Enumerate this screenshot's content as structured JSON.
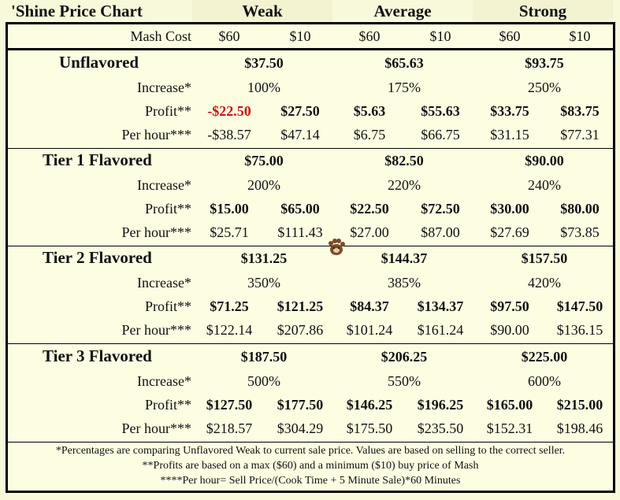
{
  "header": {
    "title": "'Shine Price Chart",
    "columns": [
      "Weak",
      "Average",
      "Strong"
    ]
  },
  "mash_cost": {
    "label": "Mash Cost",
    "values": [
      "$60",
      "$10",
      "$60",
      "$10",
      "$60",
      "$10"
    ]
  },
  "sections": [
    {
      "title": "Unflavored",
      "prices": [
        "$37.50",
        "$65.63",
        "$93.75"
      ],
      "increase_label": "Increase*",
      "increase": [
        "100%",
        "175%",
        "250%"
      ],
      "profit_label": "Profit**",
      "profit": [
        "-$22.50",
        "$27.50",
        "$5.63",
        "$55.63",
        "$33.75",
        "$83.75"
      ],
      "per_hour_label": "Per hour***",
      "per_hour": [
        "-$38.57",
        "$47.14",
        "$6.75",
        "$66.75",
        "$31.15",
        "$77.31"
      ]
    },
    {
      "title": "Tier 1 Flavored",
      "prices": [
        "$75.00",
        "$82.50",
        "$90.00"
      ],
      "increase_label": "Increase*",
      "increase": [
        "200%",
        "220%",
        "240%"
      ],
      "profit_label": "Profit**",
      "profit": [
        "$15.00",
        "$65.00",
        "$22.50",
        "$72.50",
        "$30.00",
        "$80.00"
      ],
      "per_hour_label": "Per hour***",
      "per_hour": [
        "$25.71",
        "$111.43",
        "$27.00",
        "$87.00",
        "$27.69",
        "$73.85"
      ]
    },
    {
      "title": "Tier 2 Flavored",
      "prices": [
        "$131.25",
        "$144.37",
        "$157.50"
      ],
      "increase_label": "Increase*",
      "increase": [
        "350%",
        "385%",
        "420%"
      ],
      "profit_label": "Profit**",
      "profit": [
        "$71.25",
        "$121.25",
        "$84.37",
        "$134.37",
        "$97.50",
        "$147.50"
      ],
      "per_hour_label": "Per hour***",
      "per_hour": [
        "$122.14",
        "$207.86",
        "$101.24",
        "$161.24",
        "$90.00",
        "$136.15"
      ]
    },
    {
      "title": "Tier 3 Flavored",
      "prices": [
        "$187.50",
        "$206.25",
        "$225.00"
      ],
      "increase_label": "Increase*",
      "increase": [
        "500%",
        "550%",
        "600%"
      ],
      "profit_label": "Profit**",
      "profit": [
        "$127.50",
        "$177.50",
        "$146.25",
        "$196.25",
        "$165.00",
        "$215.00"
      ],
      "per_hour_label": "Per hour***",
      "per_hour": [
        "$218.57",
        "$304.29",
        "$175.50",
        "$235.50",
        "$152.31",
        "$198.46"
      ]
    }
  ],
  "footnotes": [
    "*Percentages are comparing Unflavored Weak to current sale price. Values are based on selling to the correct seller.",
    "**Profits are based on a max ($60) and a minimum ($10) buy price of Mash",
    "****Per hour= Sell Price/(Cook Time + 5 Minute Sale)*60 Minutes"
  ],
  "colors": {
    "background": "#f8f8da",
    "negative": "#d01010",
    "border": "#000000"
  },
  "cursor_icon": "bear-paw-cursor-icon"
}
